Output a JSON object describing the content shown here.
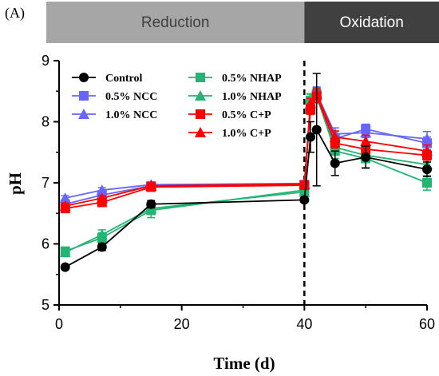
{
  "panel_label": "(A)",
  "phases": [
    {
      "label": "Reduction",
      "x_start": 0,
      "x_end": 40,
      "color": "#a6a6a6",
      "text_color": "#404040"
    },
    {
      "label": "Oxidation",
      "x_start": 40,
      "x_end": 60,
      "color": "#404040",
      "text_color": "#ffffff"
    }
  ],
  "chart_data": {
    "type": "line",
    "xlabel": "Time (d)",
    "ylabel": "pH",
    "xlim": [
      0,
      60
    ],
    "ylim": [
      5,
      9
    ],
    "xticks": [
      0,
      20,
      40,
      60
    ],
    "yticks": [
      5,
      6,
      7,
      8,
      9
    ],
    "grid": false,
    "vertical_dashed_line_x": 40,
    "legend_placement": "top-left",
    "series": [
      {
        "name": "Control",
        "marker": "circle",
        "color": "#000000",
        "x": [
          1,
          7,
          15,
          40,
          41,
          42,
          45,
          50,
          60
        ],
        "y": [
          5.62,
          5.95,
          6.65,
          6.72,
          7.75,
          7.87,
          7.32,
          7.42,
          7.22
        ],
        "err": [
          0.04,
          0.06,
          0.06,
          0.04,
          0.25,
          0.92,
          0.2,
          0.18,
          0.12
        ]
      },
      {
        "name": "0.5% NCC",
        "marker": "square",
        "color": "#6666ff",
        "x": [
          1,
          7,
          15,
          40,
          41,
          42,
          45,
          50,
          60
        ],
        "y": [
          6.65,
          6.8,
          6.95,
          6.97,
          8.27,
          8.45,
          7.72,
          7.88,
          7.65
        ],
        "err": [
          0.04,
          0.04,
          0.05,
          0.04,
          0.08,
          0.1,
          0.12,
          0.08,
          0.1
        ]
      },
      {
        "name": "1.0% NCC",
        "marker": "triangle",
        "color": "#6666ff",
        "x": [
          1,
          7,
          15,
          40,
          41,
          42,
          45,
          50,
          60
        ],
        "y": [
          6.75,
          6.88,
          6.97,
          6.99,
          8.3,
          8.47,
          7.8,
          7.82,
          7.72
        ],
        "err": [
          0.04,
          0.04,
          0.04,
          0.04,
          0.07,
          0.1,
          0.1,
          0.08,
          0.12
        ]
      },
      {
        "name": "0.5% NHAP",
        "marker": "square",
        "color": "#22b573",
        "x": [
          1,
          7,
          15,
          40,
          41,
          42,
          45,
          50,
          60
        ],
        "y": [
          5.88,
          6.1,
          6.55,
          6.88,
          8.35,
          8.42,
          7.52,
          7.4,
          7.0
        ],
        "err": [
          0.06,
          0.08,
          0.12,
          0.06,
          0.1,
          0.12,
          0.12,
          0.15,
          0.12
        ]
      },
      {
        "name": "1.0% NHAP",
        "marker": "triangle",
        "color": "#22b573",
        "x": [
          1,
          7,
          15,
          40,
          41,
          42,
          45,
          50,
          60
        ],
        "y": [
          5.86,
          6.15,
          6.58,
          6.85,
          8.38,
          8.45,
          7.58,
          7.45,
          7.3
        ],
        "err": [
          0.06,
          0.08,
          0.1,
          0.06,
          0.08,
          0.1,
          0.1,
          0.12,
          0.12
        ]
      },
      {
        "name": "0.5% C+P",
        "marker": "square",
        "color": "#ff0000",
        "x": [
          1,
          7,
          15,
          40,
          41,
          42,
          45,
          50,
          60
        ],
        "y": [
          6.58,
          6.68,
          6.93,
          6.96,
          8.2,
          8.42,
          7.65,
          7.55,
          7.45
        ],
        "err": [
          0.06,
          0.04,
          0.05,
          0.04,
          0.08,
          0.1,
          0.08,
          0.1,
          0.08
        ]
      },
      {
        "name": "1.0% C+P",
        "marker": "triangle",
        "color": "#ff0000",
        "x": [
          1,
          7,
          15,
          40,
          41,
          42,
          45,
          50,
          60
        ],
        "y": [
          6.62,
          6.75,
          6.95,
          6.98,
          8.3,
          8.45,
          7.75,
          7.68,
          7.52
        ],
        "err": [
          0.05,
          0.04,
          0.05,
          0.04,
          0.08,
          0.1,
          0.1,
          0.1,
          0.1
        ]
      }
    ]
  }
}
